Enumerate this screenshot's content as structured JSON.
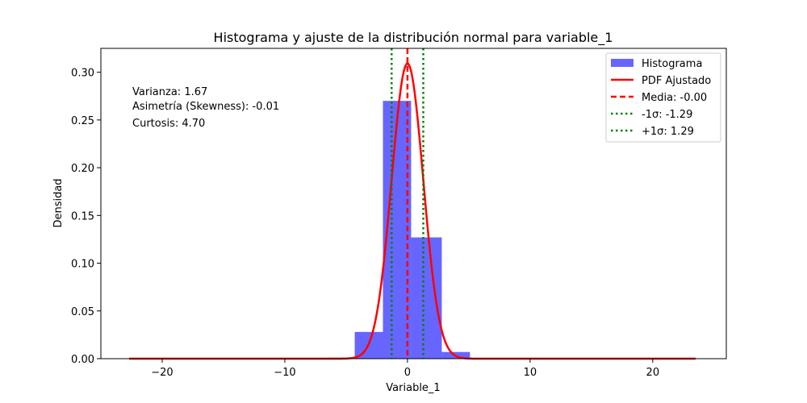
{
  "chart_data": {
    "type": "bar",
    "title": "Histograma y ajuste de la distribución normal para variable_1",
    "xlabel": "Variable_1",
    "ylabel": "Densidad",
    "xlim": [
      -25,
      26
    ],
    "ylim": [
      0,
      0.325
    ],
    "xticks": [
      -20,
      -10,
      0,
      10,
      20
    ],
    "xtick_labels": [
      "−20",
      "−10",
      "0",
      "10",
      "20"
    ],
    "yticks": [
      0.0,
      0.05,
      0.1,
      0.15,
      0.2,
      0.25,
      0.3
    ],
    "ytick_labels": [
      "0.00",
      "0.05",
      "0.10",
      "0.15",
      "0.20",
      "0.25",
      "0.30"
    ],
    "histogram": {
      "name": "Histograma",
      "color": "#6666ff",
      "bins": [
        {
          "x0": -22.7,
          "x1": -20.4,
          "value": 0.0
        },
        {
          "x0": -6.6,
          "x1": -4.3,
          "value": 0.001
        },
        {
          "x0": -4.3,
          "x1": -2.0,
          "value": 0.028
        },
        {
          "x0": -2.0,
          "x1": 0.3,
          "value": 0.27
        },
        {
          "x0": 0.3,
          "x1": 2.8,
          "value": 0.127
        },
        {
          "x0": 2.8,
          "x1": 5.1,
          "value": 0.007
        },
        {
          "x0": 21.2,
          "x1": 23.5,
          "value": 0.0
        }
      ]
    },
    "pdf": {
      "name": "PDF Ajustado",
      "color": "#ff0000",
      "mean": 0.0,
      "sigma": 1.29,
      "x_range": [
        -22.7,
        23.5
      ]
    },
    "vlines": [
      {
        "name": "Media: -0.00",
        "x": 0.0,
        "color": "#ff0000",
        "style": "dashed"
      },
      {
        "name": "-1σ: -1.29",
        "x": -1.29,
        "color": "#008000",
        "style": "dotted"
      },
      {
        "name": "+1σ: 1.29",
        "x": 1.29,
        "color": "#008000",
        "style": "dotted"
      }
    ],
    "annotations": [
      "Varianza: 1.67",
      "Asimetría (Skewness): -0.01",
      "Curtosis: 4.70"
    ],
    "legend_position": "top-right",
    "grid": false
  }
}
